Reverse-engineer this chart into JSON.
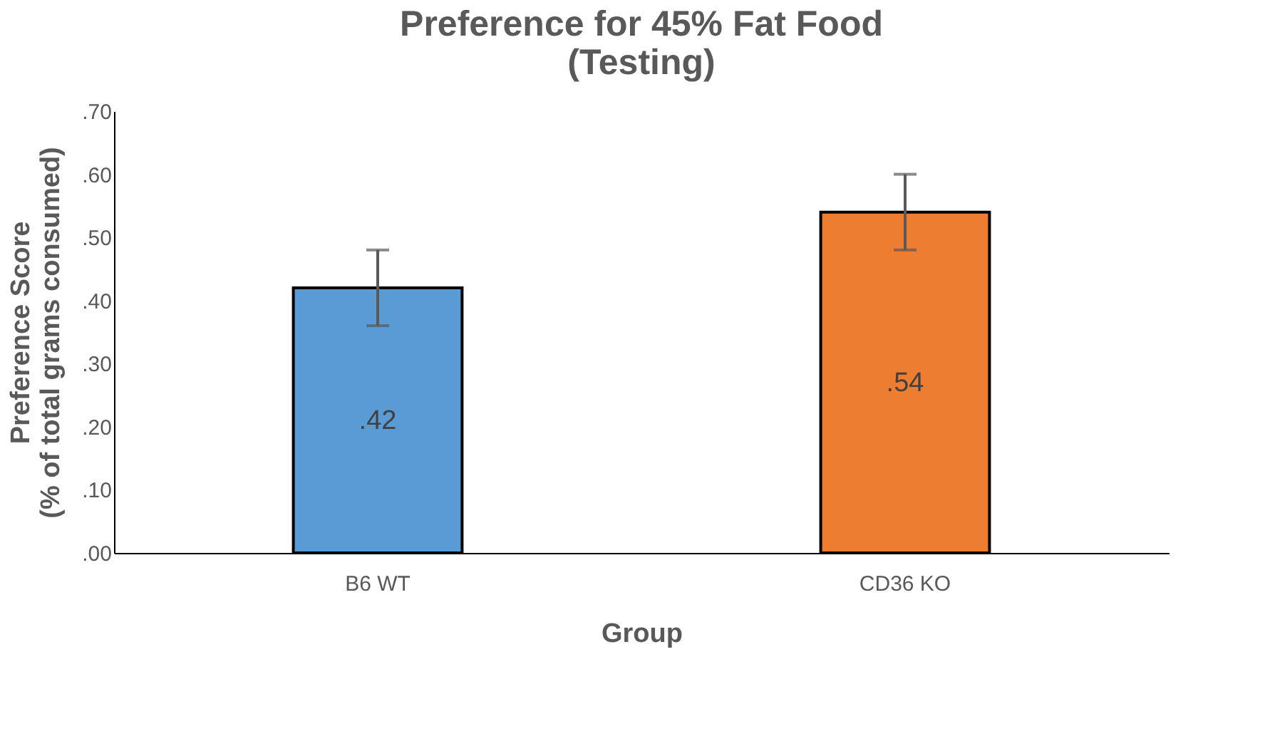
{
  "chart_data": {
    "type": "bar",
    "title": "Preference for 45% Fat Food\n(Testing)",
    "xlabel": "Group",
    "ylabel": "Preference Score\n(% of total grams consumed)",
    "categories": [
      "B6 WT",
      "CD36 KO"
    ],
    "values": [
      0.42,
      0.54
    ],
    "colors": [
      "#5b9bd5",
      "#ed7d31"
    ],
    "errors": [
      0.06,
      0.06
    ],
    "value_labels": [
      ".42",
      ".54"
    ],
    "ylim": [
      0,
      0.7
    ],
    "yticks": [
      {
        "value": 0,
        "label": ".00"
      },
      {
        "value": 0.1,
        "label": ".10"
      },
      {
        "value": 0.2,
        "label": ".20"
      },
      {
        "value": 0.3,
        "label": ".30"
      },
      {
        "value": 0.4,
        "label": ".40"
      },
      {
        "value": 0.5,
        "label": ".50"
      },
      {
        "value": 0.6,
        "label": ".60"
      },
      {
        "value": 0.7,
        "label": ".70"
      }
    ],
    "grid": false
  }
}
